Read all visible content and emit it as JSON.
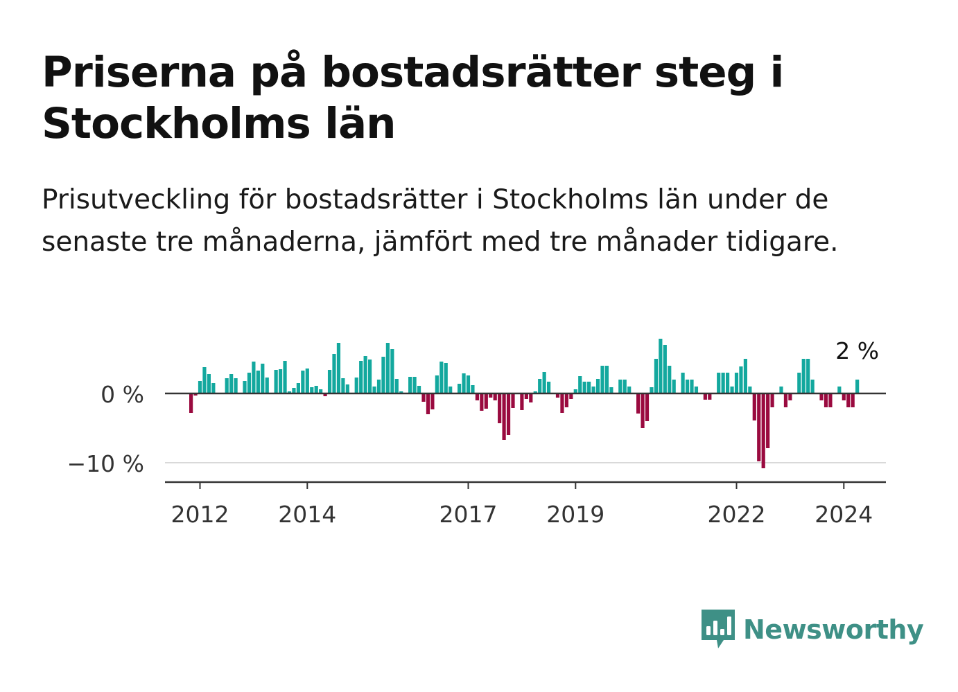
{
  "title": "Priserna på bostadsrätter steg i Stockholms län",
  "subtitle": "Prisutveckling för bostadsrätter i Stockholms län under de senaste tre månaderna, jämfört med tre månader tidigare.",
  "brand": {
    "name": "Newsworthy",
    "icon": "newsworthy-logo-icon",
    "color": "#3e9086"
  },
  "chart_data": {
    "type": "bar",
    "x_start": "2011-11",
    "x_end": "2024-03",
    "xticks": [
      {
        "label": "2012",
        "date": "2012-01"
      },
      {
        "label": "2014",
        "date": "2014-01"
      },
      {
        "label": "2017",
        "date": "2017-01"
      },
      {
        "label": "2019",
        "date": "2019-01"
      },
      {
        "label": "2022",
        "date": "2022-01"
      },
      {
        "label": "2024",
        "date": "2024-01"
      }
    ],
    "yticks": [
      {
        "label": "0 %",
        "value": 0
      },
      {
        "label": "−10 %",
        "value": -10
      }
    ],
    "ylim": [
      -12.8,
      8.5
    ],
    "grid": true,
    "positive_color": "#13a89e",
    "negative_color": "#9a0a3f",
    "last_label": "2 %",
    "values": [
      -2.8,
      -0.3,
      1.8,
      3.8,
      2.8,
      1.5,
      0,
      0,
      2.2,
      2.8,
      2.2,
      0,
      1.8,
      3.0,
      4.6,
      3.3,
      4.3,
      2.3,
      0,
      3.4,
      3.5,
      4.7,
      0.3,
      0.8,
      1.5,
      3.3,
      3.6,
      0.9,
      1.1,
      0.6,
      -0.4,
      3.4,
      5.7,
      7.3,
      2.2,
      1.3,
      0,
      2.3,
      4.7,
      5.4,
      4.9,
      1.0,
      2.0,
      5.3,
      7.3,
      6.4,
      2.1,
      0.3,
      0,
      2.4,
      2.4,
      1.1,
      -1.2,
      -3.0,
      -2.3,
      2.6,
      4.6,
      4.4,
      1.0,
      0,
      1.4,
      2.9,
      2.6,
      1.2,
      -1.0,
      -2.5,
      -2.2,
      -0.6,
      -1.0,
      -4.3,
      -6.7,
      -6.0,
      -2.1,
      0,
      -2.4,
      -0.8,
      -1.3,
      0.3,
      2.1,
      3.1,
      1.7,
      0,
      -0.6,
      -2.8,
      -2.0,
      -0.8,
      0.6,
      2.5,
      1.7,
      1.7,
      1.0,
      2.1,
      4.0,
      4.0,
      0.9,
      0,
      2.0,
      2.0,
      1.0,
      0,
      -2.9,
      -5.0,
      -4.0,
      0.9,
      5.0,
      7.9,
      7.0,
      4.0,
      2.0,
      0,
      3.0,
      2.0,
      2.0,
      1.0,
      0,
      -0.9,
      -0.9,
      0,
      3.0,
      3.0,
      3.0,
      1.0,
      3.0,
      3.9,
      5.0,
      1.0,
      -3.9,
      -9.8,
      -10.8,
      -7.9,
      -2.0,
      0,
      1.0,
      -2.0,
      -1.0,
      0,
      3.0,
      5.0,
      5.0,
      2.0,
      0,
      -1.0,
      -2.0,
      -2.0,
      0,
      1.0,
      -1.0,
      -2.0,
      -2.0,
      2.0
    ]
  }
}
